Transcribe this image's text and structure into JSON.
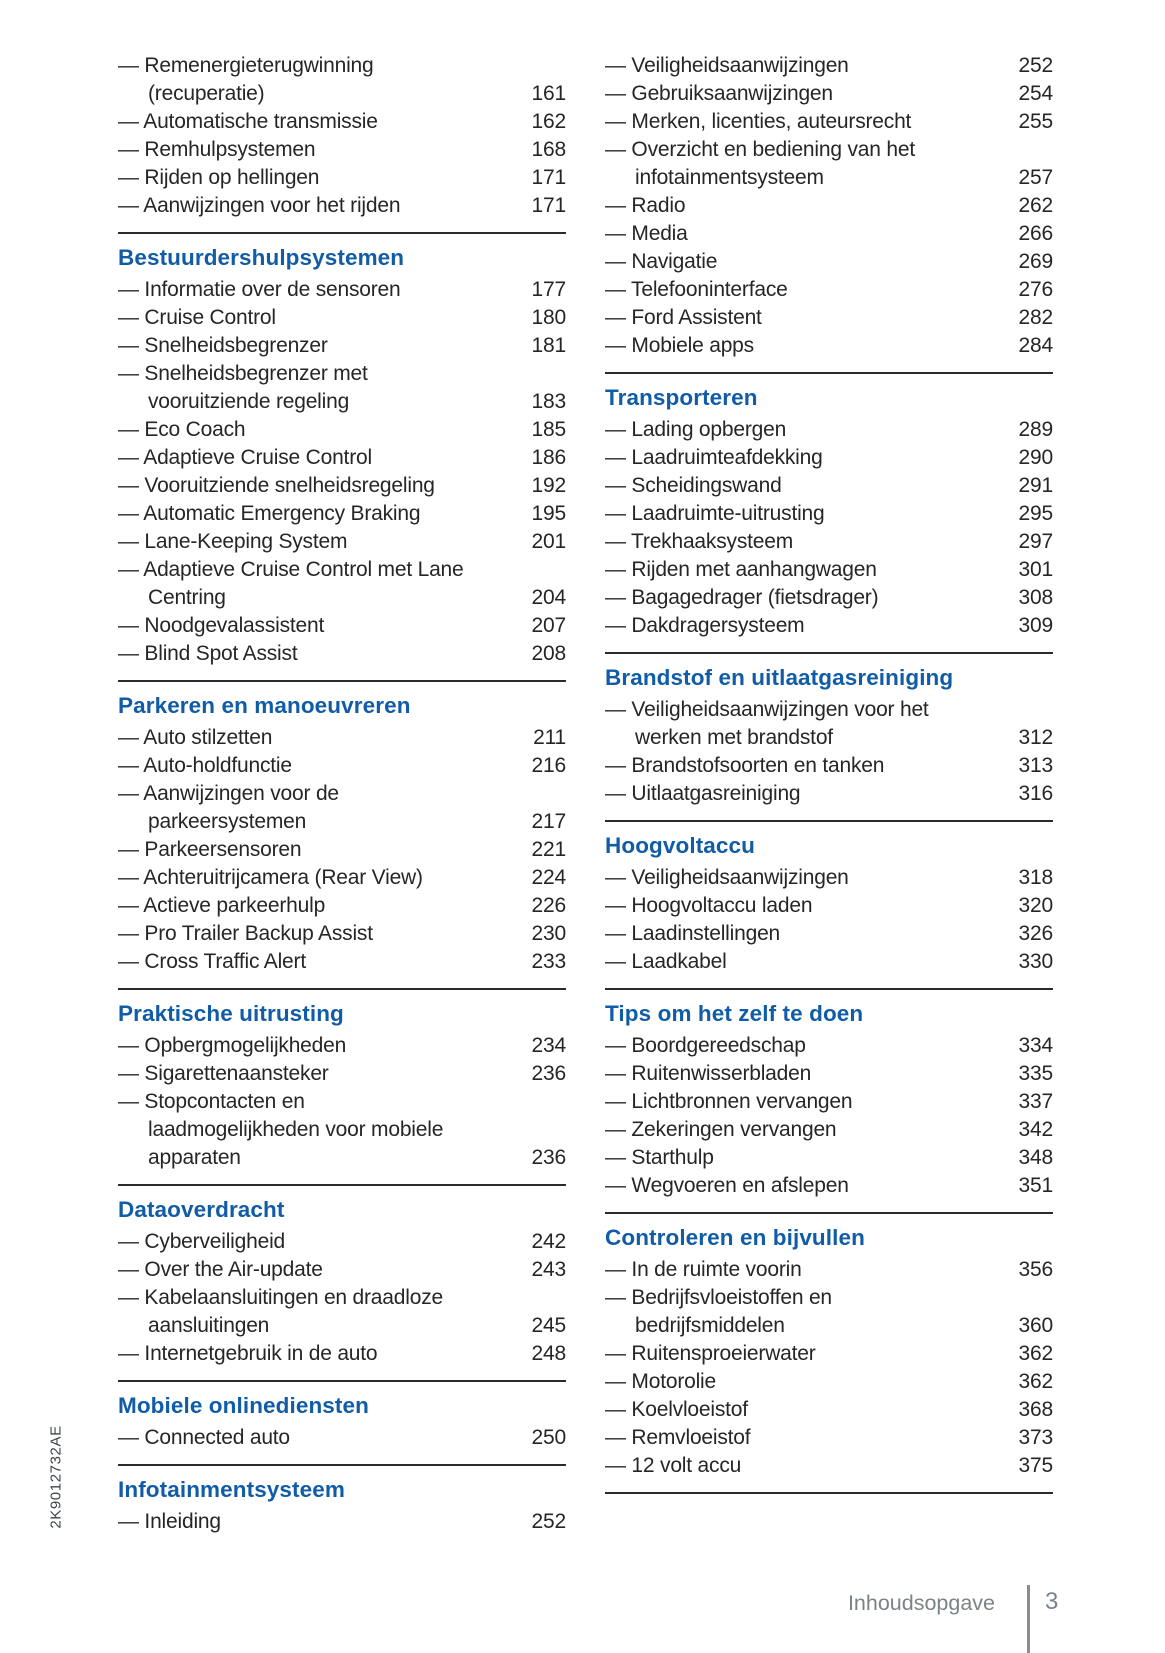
{
  "page": {
    "spine_code": "2K9012732AE"
  },
  "footer": {
    "label": "Inhoudsopgave",
    "page_number": "3"
  },
  "colors": {
    "accent_blue": "#115CA6",
    "body_text": "#262626",
    "footer_gray": "#7B8389"
  },
  "toc": {
    "columns": [
      {
        "sections": [
          {
            "title": "",
            "divider_after": true,
            "entries": [
              {
                "label": "Remenergieterugwinning\n(recuperatie)",
                "page": "161"
              },
              {
                "label": "Automatische transmissie",
                "page": "162"
              },
              {
                "label": "Remhulpsystemen",
                "page": "168"
              },
              {
                "label": "Rijden op hellingen",
                "page": "171"
              },
              {
                "label": "Aanwijzingen voor het rijden",
                "page": "171"
              }
            ]
          },
          {
            "title": "Bestuurdershulpsystemen",
            "divider_after": true,
            "entries": [
              {
                "label": "Informatie over de sensoren",
                "page": "177"
              },
              {
                "label": "Cruise Control",
                "page": "180"
              },
              {
                "label": "Snelheidsbegrenzer",
                "page": "181"
              },
              {
                "label": "Snelheidsbegrenzer met\nvooruitziende regeling",
                "page": "183"
              },
              {
                "label": "Eco Coach",
                "page": "185"
              },
              {
                "label": "Adaptieve Cruise Control",
                "page": "186"
              },
              {
                "label": "Vooruitziende snelheidsregeling",
                "page": "192"
              },
              {
                "label": "Automatic Emergency Braking",
                "page": "195"
              },
              {
                "label": "Lane-Keeping System",
                "page": "201"
              },
              {
                "label": "Adaptieve Cruise Control met Lane\nCentring",
                "page": "204"
              },
              {
                "label": "Noodgevalassistent",
                "page": "207"
              },
              {
                "label": "Blind Spot Assist",
                "page": "208"
              }
            ]
          },
          {
            "title": "Parkeren en manoeuvreren",
            "divider_after": true,
            "entries": [
              {
                "label": "Auto stilzetten",
                "page": "211"
              },
              {
                "label": "Auto-holdfunctie",
                "page": "216"
              },
              {
                "label": "Aanwijzingen voor de\nparkeersystemen",
                "page": "217"
              },
              {
                "label": "Parkeersensoren",
                "page": "221"
              },
              {
                "label": "Achteruitrijcamera (Rear View)",
                "page": "224"
              },
              {
                "label": "Actieve parkeerhulp",
                "page": "226"
              },
              {
                "label": "Pro Trailer Backup Assist",
                "page": "230"
              },
              {
                "label": "Cross Traffic Alert",
                "page": "233"
              }
            ]
          },
          {
            "title": "Praktische uitrusting",
            "divider_after": true,
            "entries": [
              {
                "label": "Opbergmogelijkheden",
                "page": "234"
              },
              {
                "label": "Sigarettenaansteker",
                "page": "236"
              },
              {
                "label": "Stopcontacten en\nlaadmogelijkheden voor mobiele\napparaten",
                "page": "236"
              }
            ]
          },
          {
            "title": "Dataoverdracht",
            "divider_after": true,
            "entries": [
              {
                "label": "Cyberveiligheid",
                "page": "242"
              },
              {
                "label": "Over the Air-update",
                "page": "243"
              },
              {
                "label": "Kabelaansluitingen en draadloze\naansluitingen",
                "page": "245"
              },
              {
                "label": "Internetgebruik in de auto",
                "page": "248"
              }
            ]
          },
          {
            "title": "Mobiele onlinediensten",
            "divider_after": true,
            "entries": [
              {
                "label": "Connected auto",
                "page": "250"
              }
            ]
          },
          {
            "title": "Infotainmentsysteem",
            "divider_after": false,
            "entries": [
              {
                "label": "Inleiding",
                "page": "252"
              }
            ]
          }
        ]
      },
      {
        "sections": [
          {
            "title": "",
            "divider_after": true,
            "entries": [
              {
                "label": "Veiligheidsaanwijzingen",
                "page": "252"
              },
              {
                "label": "Gebruiksaanwijzingen",
                "page": "254"
              },
              {
                "label": "Merken, licenties, auteursrecht",
                "page": "255"
              },
              {
                "label": "Overzicht en bediening van het\ninfotainmentsysteem",
                "page": "257"
              },
              {
                "label": "Radio",
                "page": "262"
              },
              {
                "label": "Media",
                "page": "266"
              },
              {
                "label": "Navigatie",
                "page": "269"
              },
              {
                "label": "Telefooninterface",
                "page": "276"
              },
              {
                "label": "Ford Assistent",
                "page": "282"
              },
              {
                "label": "Mobiele apps",
                "page": "284"
              }
            ]
          },
          {
            "title": "Transporteren",
            "divider_after": true,
            "entries": [
              {
                "label": "Lading opbergen",
                "page": "289"
              },
              {
                "label": "Laadruimteafdekking",
                "page": "290"
              },
              {
                "label": "Scheidingswand",
                "page": "291"
              },
              {
                "label": "Laadruimte-uitrusting",
                "page": "295"
              },
              {
                "label": "Trekhaaksysteem",
                "page": "297"
              },
              {
                "label": "Rijden met aanhangwagen",
                "page": "301"
              },
              {
                "label": "Bagagedrager (fietsdrager)",
                "page": "308"
              },
              {
                "label": "Dakdragersysteem",
                "page": "309"
              }
            ]
          },
          {
            "title": "Brandstof en uitlaatgasreiniging",
            "divider_after": true,
            "entries": [
              {
                "label": "Veiligheidsaanwijzingen voor het\nwerken met brandstof",
                "page": "312"
              },
              {
                "label": "Brandstofsoorten en tanken",
                "page": "313"
              },
              {
                "label": "Uitlaatgasreiniging",
                "page": "316"
              }
            ]
          },
          {
            "title": "Hoogvoltaccu",
            "divider_after": true,
            "entries": [
              {
                "label": "Veiligheidsaanwijzingen",
                "page": "318"
              },
              {
                "label": "Hoogvoltaccu laden",
                "page": "320"
              },
              {
                "label": "Laadinstellingen",
                "page": "326"
              },
              {
                "label": "Laadkabel",
                "page": "330"
              }
            ]
          },
          {
            "title": "Tips om het zelf te doen",
            "divider_after": true,
            "entries": [
              {
                "label": "Boordgereedschap",
                "page": "334"
              },
              {
                "label": "Ruitenwisserbladen",
                "page": "335"
              },
              {
                "label": "Lichtbronnen vervangen",
                "page": "337"
              },
              {
                "label": "Zekeringen vervangen",
                "page": "342"
              },
              {
                "label": "Starthulp",
                "page": "348"
              },
              {
                "label": "Wegvoeren en afslepen",
                "page": "351"
              }
            ]
          },
          {
            "title": "Controleren en bijvullen",
            "divider_after": true,
            "entries": [
              {
                "label": "In de ruimte voorin",
                "page": "356"
              },
              {
                "label": "Bedrijfsvloeistoffen en\nbedrijfsmiddelen",
                "page": "360"
              },
              {
                "label": "Ruitensproeierwater",
                "page": "362"
              },
              {
                "label": "Motorolie",
                "page": "362"
              },
              {
                "label": "Koelvloeistof",
                "page": "368"
              },
              {
                "label": "Remvloeistof",
                "page": "373"
              },
              {
                "label": "12 volt accu",
                "page": "375"
              }
            ]
          }
        ]
      }
    ]
  }
}
